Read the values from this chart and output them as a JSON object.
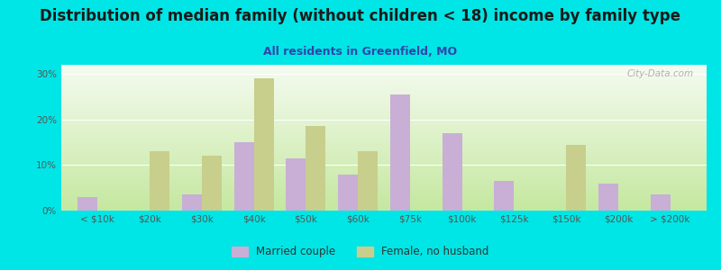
{
  "title": "Distribution of median family (without children < 18) income by family type",
  "subtitle": "All residents in Greenfield, MO",
  "categories": [
    "< $10k",
    "$20k",
    "$30k",
    "$40k",
    "$50k",
    "$60k",
    "$75k",
    "$100k",
    "$125k",
    "$150k",
    "$200k",
    "> $200k"
  ],
  "married_couple": [
    3,
    0,
    3.5,
    15,
    11.5,
    8,
    25.5,
    17,
    6.5,
    0,
    6,
    3.5
  ],
  "female_no_husband": [
    0,
    13,
    12,
    29,
    18.5,
    13,
    0,
    0,
    0,
    14.5,
    0,
    0
  ],
  "married_color": "#c9aed6",
  "female_color": "#c8ce8c",
  "background_color": "#00e5e5",
  "ylim": [
    0,
    32
  ],
  "yticks": [
    0,
    10,
    20,
    30
  ],
  "ytick_labels": [
    "0%",
    "10%",
    "20%",
    "30%"
  ],
  "watermark": "City-Data.com",
  "legend_married": "Married couple",
  "legend_female": "Female, no husband",
  "title_fontsize": 12,
  "subtitle_fontsize": 9,
  "bar_width": 0.38
}
